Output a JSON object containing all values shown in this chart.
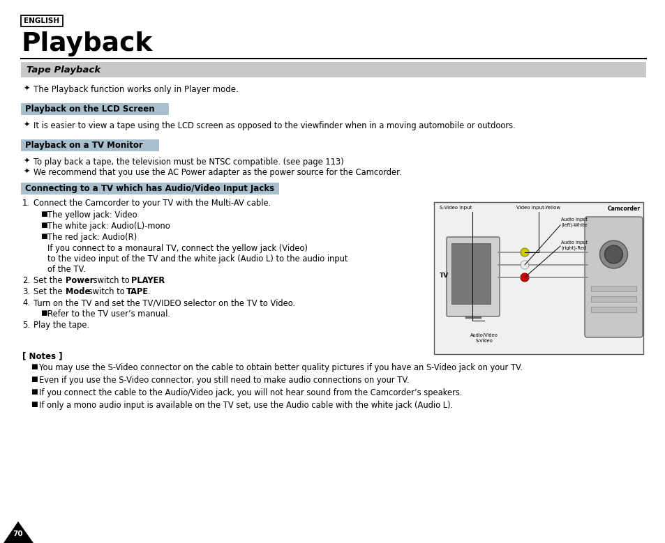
{
  "bg_color": "#ffffff",
  "page_number": "70",
  "english_label": "ENGLISH",
  "title": "Playback",
  "section_tape_playback": "Tape Playback",
  "section_tape_bg": "#c8c8c8",
  "bullet_char": "✦",
  "tape_playback_text": "The Playback function works only in Player mode.",
  "sub_section_lcd": "Playback on the LCD Screen",
  "sub_section_lcd_bg": "#a8bfce",
  "lcd_text": "It is easier to view a tape using the LCD screen as opposed to the viewfinder when in a moving automobile or outdoors.",
  "sub_section_tv": "Playback on a TV Monitor",
  "sub_section_tv_bg": "#a8bfce",
  "tv_text1": "To play back a tape, the television must be NTSC compatible. (see page 113)",
  "tv_text2": "We recommend that you use the AC Power adapter as the power source for the Camcorder.",
  "sub_section_connect": "Connecting to a TV which has Audio/Video Input Jacks",
  "sub_section_connect_bg": "#a8bfce",
  "step1_main": "Connect the Camcorder to your TV with the Multi-AV cable.",
  "bullet1": "The yellow jack: Video",
  "bullet2": "The white jack: Audio(L)-mono",
  "bullet3": "The red jack: Audio(R)",
  "mono_line1": "If you connect to a monaural TV, connect the yellow jack (Video)",
  "mono_line2": "to the video input of the TV and the white jack (Audio L) to the audio input",
  "mono_line3": "of the TV.",
  "step4": "Turn on the TV and set the TV/VIDEO selector on the TV to Video.",
  "step4_bullet": "Refer to the TV user’s manual.",
  "step5": "Play the tape.",
  "notes_header": "[ Notes ]",
  "note1": "You may use the S-Video connector on the cable to obtain better quality pictures if you have an S-Video jack on your TV.",
  "note2": "Even if you use the S-Video connector, you still need to make audio connections on your TV.",
  "note3": "If you connect the cable to the Audio/Video jack, you will not hear sound from the Camcorder’s speakers.",
  "note4": "If only a mono audio input is available on the TV set, use the Audio cable with the white jack (Audio L).",
  "text_color": "#000000",
  "small_bullet": "■",
  "diag_label_camcorder": "Camcorder",
  "diag_label_tv": "TV",
  "diag_label_svideo_input": "S-Video input",
  "diag_label_video_yellow": "Video input-Yellow",
  "diag_label_audio_left": "Audio input\n(left)-White",
  "diag_label_audio_right": "Audio input\n(right)-Red",
  "diag_label_av_svideo": "Audio/Video\nS-Video"
}
